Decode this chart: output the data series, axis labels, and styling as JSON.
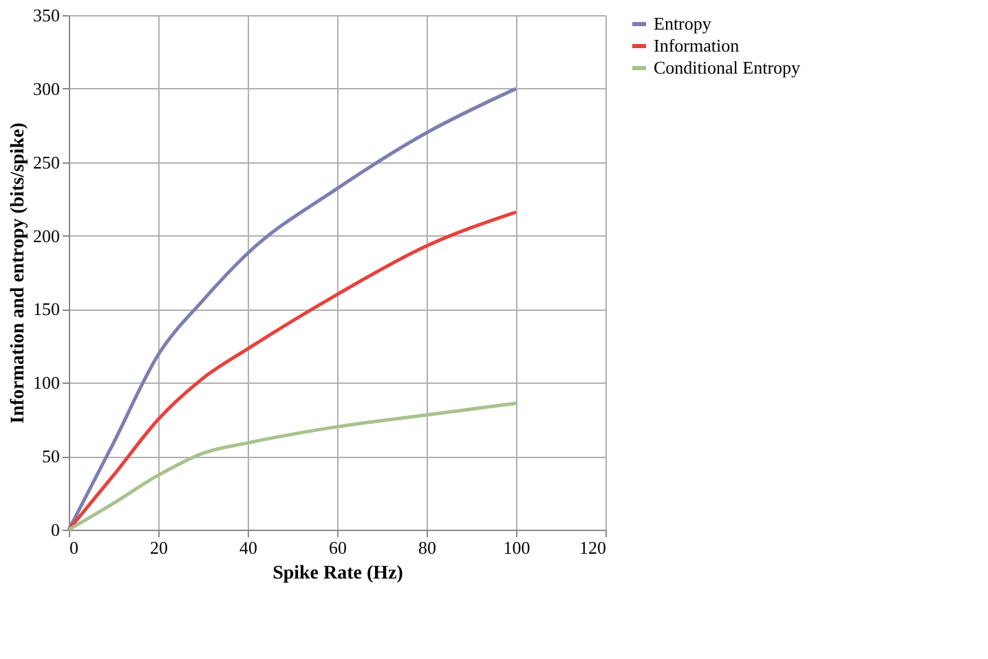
{
  "chart_data": {
    "type": "line",
    "xlabel": "Spike Rate (Hz)",
    "ylabel": "Information and entropy (bits/spike)",
    "x": [
      0,
      10,
      20,
      30,
      40,
      60,
      80,
      100
    ],
    "series": [
      {
        "name": "Entropy",
        "color": "#7b7fb0",
        "values": [
          0,
          59,
          119,
          156,
          188,
          232,
          270,
          300
        ]
      },
      {
        "name": "Information",
        "color": "#e8413c",
        "values": [
          0,
          37,
          75,
          103,
          123,
          160,
          193,
          216
        ]
      },
      {
        "name": "Conditional Entropy",
        "color": "#a8c28e",
        "values": [
          0,
          18,
          37,
          52,
          59,
          70,
          78,
          86
        ]
      }
    ],
    "xlim": [
      0,
      120
    ],
    "xticks": [
      0,
      20,
      40,
      60,
      80,
      100,
      120
    ],
    "ylim": [
      0,
      350
    ],
    "yticks": [
      0,
      50,
      100,
      150,
      200,
      250,
      300,
      350
    ],
    "grid": true,
    "legend": "right",
    "marker": "none",
    "line_style": "solid"
  }
}
